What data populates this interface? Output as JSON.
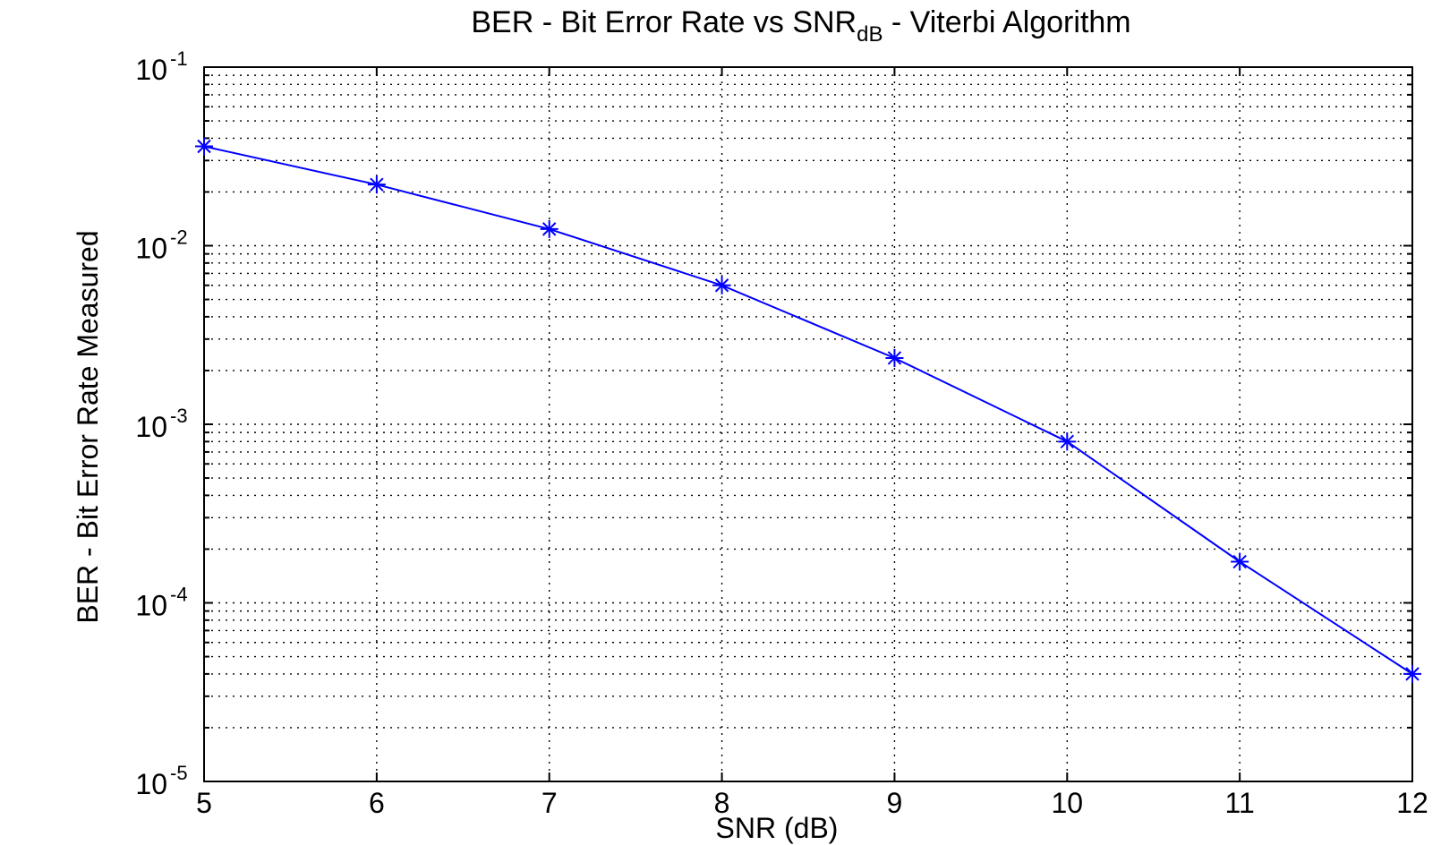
{
  "chart_data": {
    "type": "line",
    "title": {
      "main": "BER - Bit Error Rate vs SNR",
      "subscript": "dB",
      "suffix": " - Viterbi Algorithm"
    },
    "xlabel": "SNR (dB)",
    "ylabel": "BER - Bit Error Rate Measured",
    "xlim": [
      5,
      12
    ],
    "ylim": [
      1e-05,
      0.1
    ],
    "yscale": "log",
    "grid": "on",
    "x_ticks": [
      "5",
      "6",
      "7",
      "8",
      "9",
      "10",
      "11",
      "12"
    ],
    "y_ticks": [
      {
        "base": "10",
        "exp": "-1"
      },
      {
        "base": "10",
        "exp": "-2"
      },
      {
        "base": "10",
        "exp": "-3"
      },
      {
        "base": "10",
        "exp": "-4"
      },
      {
        "base": "10",
        "exp": "-5"
      }
    ],
    "series": [
      {
        "color": "#0000ff",
        "marker": "asterisk",
        "x": [
          5,
          6,
          7,
          8,
          9,
          10,
          11,
          12
        ],
        "y": [
          0.036,
          0.022,
          0.0124,
          0.006,
          0.00235,
          0.0008,
          0.00017,
          4e-05
        ]
      }
    ]
  }
}
